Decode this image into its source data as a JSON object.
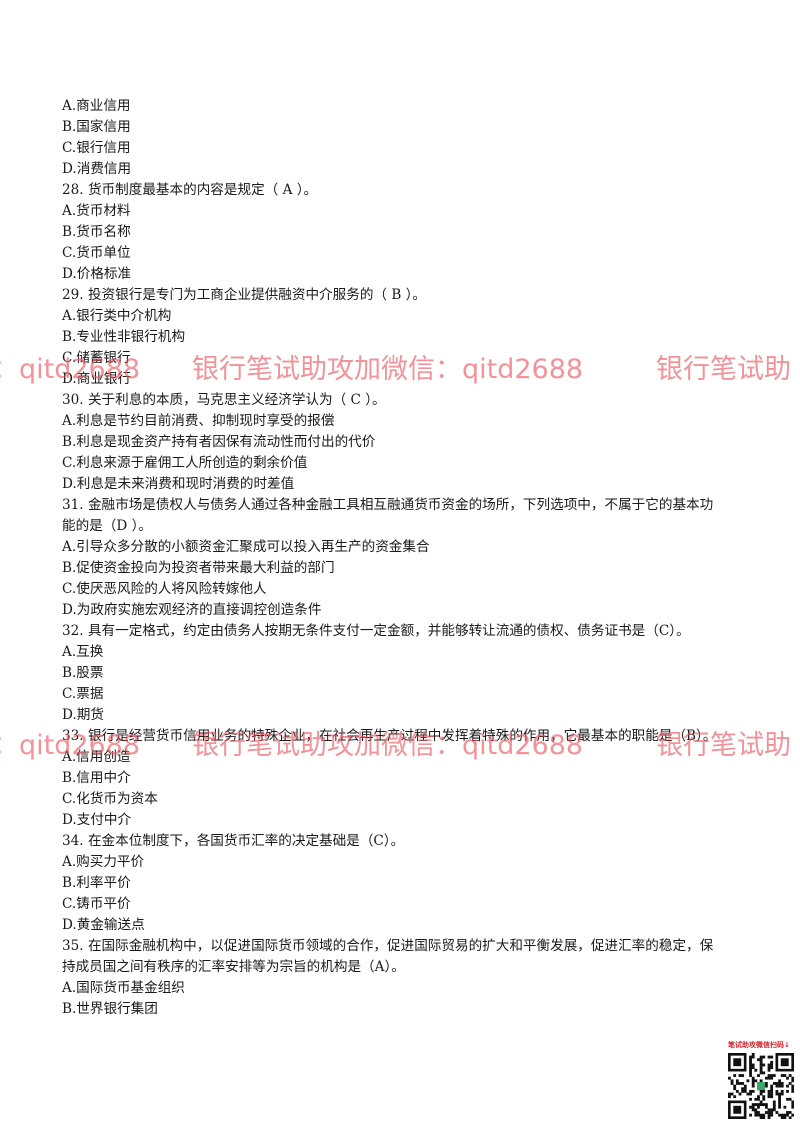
{
  "lines": [
    "A.商业信用",
    "B.国家信用",
    "C.银行信用",
    "D.消费信用",
    "28. 货币制度最基本的内容是规定（    A ）。",
    "A.货币材料",
    "B.货币名称",
    "C.货币单位",
    "D.价格标准",
    "29. 投资银行是专门为工商企业提供融资中介服务的（  B  ）。",
    "A.银行类中介机构",
    "B.专业性非银行机构",
    "C.储蓄银行",
    "D.商业银行",
    "30. 关于利息的本质，马克思主义经济学认为（  C  ）。",
    "A.利息是节约目前消费、抑制现时享受的报偿",
    "B.利息是现金资产持有者因保有流动性而付出的代价",
    "C.利息来源于雇佣工人所创造的剩余价值",
    "D.利息是未来消费和现时消费的时差值",
    "31. 金融市场是债权人与债务人通过各种金融工具相互融通货币资金的场所，下列选项中，不属于它的基本功",
    "能的是（D  ）。",
    "A.引导众多分散的小额资金汇聚成可以投入再生产的资金集合",
    "B.促使资金投向为投资者带来最大利益的部门",
    "C.使厌恶风险的人将风险转嫁他人",
    "D.为政府实施宏观经济的直接调控创造条件",
    "32. 具有一定格式，约定由债务人按期无条件支付一定金额，并能够转让流通的债权、债务证书是（C）。",
    "A.互换",
    "B.股票",
    "C.票据",
    "D.期货",
    "33. 银行是经营货币信用业务的特殊企业，在社会再生产过程中发挥着特殊的作用，它最基本的职能是（B）。",
    "A.信用创造",
    "B.信用中介",
    "C.化货币为资本",
    "D.支付中介",
    "34. 在金本位制度下，各国货币汇率的决定基础是（C）。",
    "A.购买力平价",
    "B.利率平价",
    "C.铸币平价",
    "D.黄金输送点",
    "35. 在国际金融机构中，以促进国际货币领域的合作，促进国际贸易的扩大和平衡发展，促进汇率的稳定，保",
    "持成员国之间有秩序的汇率安排等为宗旨的机构是（A）。",
    "A.国际货币基金组织",
    "B.世界银行集团"
  ],
  "watermark": {
    "left_fragment": "：qitd2688",
    "full": "银行笔试助攻加微信：qitd2688",
    "right_fragment": "银行笔试助"
  },
  "qr": {
    "caption": "笔试助攻微信扫码↓"
  }
}
